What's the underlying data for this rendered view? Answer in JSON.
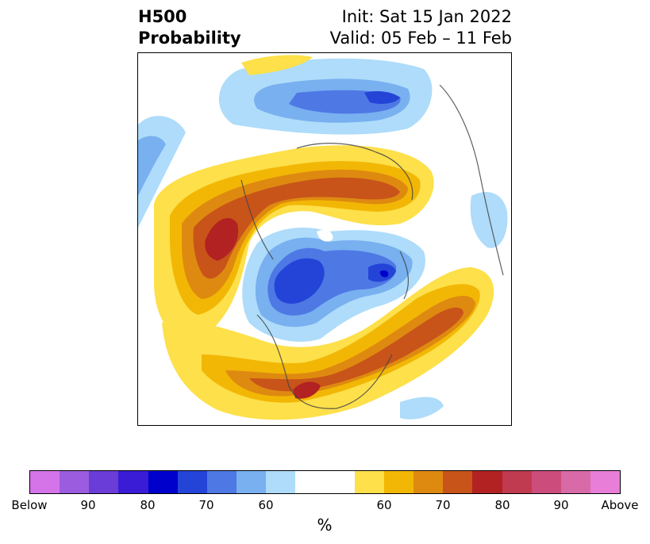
{
  "title": {
    "left_line1": "H500",
    "left_line2": "Probability",
    "right_line1": "Init: Sat 15 Jan 2022",
    "right_line2": "Valid: 05 Feb – 11 Feb"
  },
  "colorbar": {
    "colors": [
      "#d474e8",
      "#9b5ce0",
      "#6a3cd8",
      "#3a1cd6",
      "#0000cc",
      "#2444d8",
      "#4e78e4",
      "#78b0f0",
      "#aedcfa",
      "#ffffff",
      "#ffffff",
      "#fde04a",
      "#f2b705",
      "#de8a10",
      "#c8541a",
      "#b22222",
      "#c03a50",
      "#cc4c7c",
      "#d86aa8",
      "#e87ed8"
    ],
    "ticks": [
      "Below",
      "90",
      "80",
      "70",
      "60",
      "60",
      "70",
      "80",
      "90",
      "Above"
    ],
    "unit": "%"
  },
  "map": {
    "projection": "polar-stereographic north",
    "below_colors": [
      "#aedcfa",
      "#78b0f0",
      "#4e78e4",
      "#2444d8"
    ],
    "above_colors": [
      "#fde04a",
      "#f2b705",
      "#de8a10",
      "#c8541a",
      "#b22222"
    ]
  }
}
